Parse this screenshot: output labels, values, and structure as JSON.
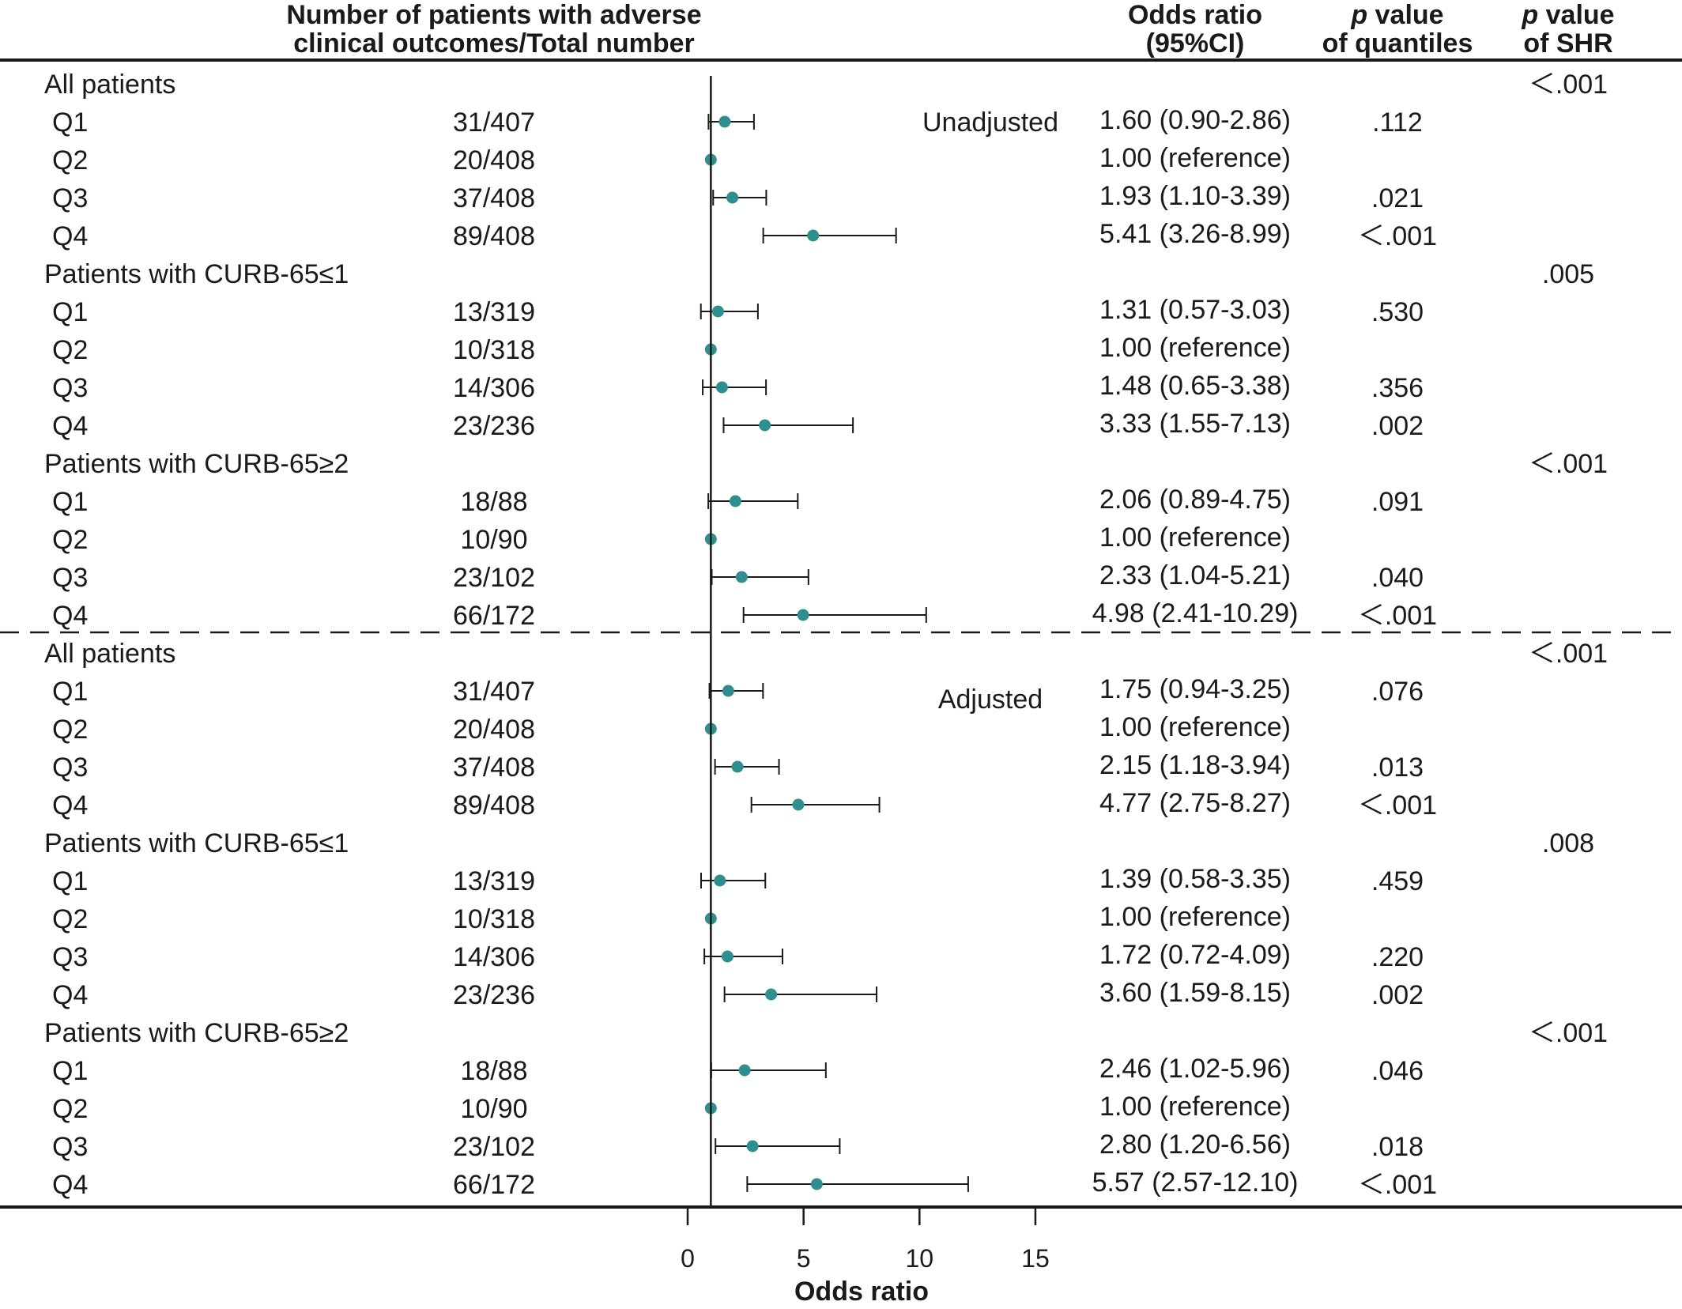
{
  "colors": {
    "marker": "#2f8f8f",
    "line": "#1a1a1a"
  },
  "headers": {
    "count_line1": "Number of patients with adverse",
    "count_line2": "clinical outcomes/Total number",
    "or_line1": "Odds ratio",
    "or_line2": "(95%CI)",
    "pq_line1_italic": "p",
    "pq_line1_rest": " value",
    "pq_line2": "of quantiles",
    "pshr_line1_italic": "p",
    "pshr_line1_rest": " value",
    "pshr_line2": "of SHR"
  },
  "chart_data": {
    "type": "forest",
    "xlabel": "Odds ratio",
    "xticks": [
      0,
      5,
      10,
      15
    ],
    "xlim": [
      0,
      15
    ],
    "reference_line": 1,
    "panels": [
      {
        "label": "Unadjusted",
        "groups": [
          {
            "name": "All patients",
            "p_shr": "＜.001",
            "rows": [
              {
                "q": "Q1",
                "count": "31/407",
                "or": 1.6,
                "lo": 0.9,
                "hi": 2.86,
                "ci_text": "1.60 (0.90-2.86)",
                "p": ".112"
              },
              {
                "q": "Q2",
                "count": "20/408",
                "or": 1.0,
                "lo": 1.0,
                "hi": 1.0,
                "ci_text": "1.00 (reference)",
                "p": ""
              },
              {
                "q": "Q3",
                "count": "37/408",
                "or": 1.93,
                "lo": 1.1,
                "hi": 3.39,
                "ci_text": "1.93 (1.10-3.39)",
                "p": ".021"
              },
              {
                "q": "Q4",
                "count": "89/408",
                "or": 5.41,
                "lo": 3.26,
                "hi": 8.99,
                "ci_text": "5.41 (3.26-8.99)",
                "p": "＜.001"
              }
            ]
          },
          {
            "name": "Patients with CURB-65≤1",
            "p_shr": ".005",
            "rows": [
              {
                "q": "Q1",
                "count": "13/319",
                "or": 1.31,
                "lo": 0.57,
                "hi": 3.03,
                "ci_text": "1.31 (0.57-3.03)",
                "p": ".530"
              },
              {
                "q": "Q2",
                "count": "10/318",
                "or": 1.0,
                "lo": 1.0,
                "hi": 1.0,
                "ci_text": "1.00 (reference)",
                "p": ""
              },
              {
                "q": "Q3",
                "count": "14/306",
                "or": 1.48,
                "lo": 0.65,
                "hi": 3.38,
                "ci_text": "1.48 (0.65-3.38)",
                "p": ".356"
              },
              {
                "q": "Q4",
                "count": "23/236",
                "or": 3.33,
                "lo": 1.55,
                "hi": 7.13,
                "ci_text": "3.33 (1.55-7.13)",
                "p": ".002"
              }
            ]
          },
          {
            "name": "Patients with CURB-65≥2",
            "p_shr": "＜.001",
            "rows": [
              {
                "q": "Q1",
                "count": "18/88",
                "or": 2.06,
                "lo": 0.89,
                "hi": 4.75,
                "ci_text": "2.06 (0.89-4.75)",
                "p": ".091"
              },
              {
                "q": "Q2",
                "count": "10/90",
                "or": 1.0,
                "lo": 1.0,
                "hi": 1.0,
                "ci_text": "1.00 (reference)",
                "p": ""
              },
              {
                "q": "Q3",
                "count": "23/102",
                "or": 2.33,
                "lo": 1.04,
                "hi": 5.21,
                "ci_text": "2.33 (1.04-5.21)",
                "p": ".040"
              },
              {
                "q": "Q4",
                "count": "66/172",
                "or": 4.98,
                "lo": 2.41,
                "hi": 10.29,
                "ci_text": "4.98 (2.41-10.29)",
                "p": "＜.001"
              }
            ]
          }
        ]
      },
      {
        "label": "Adjusted",
        "groups": [
          {
            "name": "All patients",
            "p_shr": "＜.001",
            "rows": [
              {
                "q": "Q1",
                "count": "31/407",
                "or": 1.75,
                "lo": 0.94,
                "hi": 3.25,
                "ci_text": "1.75 (0.94-3.25)",
                "p": ".076"
              },
              {
                "q": "Q2",
                "count": "20/408",
                "or": 1.0,
                "lo": 1.0,
                "hi": 1.0,
                "ci_text": "1.00 (reference)",
                "p": ""
              },
              {
                "q": "Q3",
                "count": "37/408",
                "or": 2.15,
                "lo": 1.18,
                "hi": 3.94,
                "ci_text": "2.15 (1.18-3.94)",
                "p": ".013"
              },
              {
                "q": "Q4",
                "count": "89/408",
                "or": 4.77,
                "lo": 2.75,
                "hi": 8.27,
                "ci_text": "4.77 (2.75-8.27)",
                "p": "＜.001"
              }
            ]
          },
          {
            "name": "Patients with CURB-65≤1",
            "p_shr": ".008",
            "rows": [
              {
                "q": "Q1",
                "count": "13/319",
                "or": 1.39,
                "lo": 0.58,
                "hi": 3.35,
                "ci_text": "1.39 (0.58-3.35)",
                "p": ".459"
              },
              {
                "q": "Q2",
                "count": "10/318",
                "or": 1.0,
                "lo": 1.0,
                "hi": 1.0,
                "ci_text": "1.00 (reference)",
                "p": ""
              },
              {
                "q": "Q3",
                "count": "14/306",
                "or": 1.72,
                "lo": 0.72,
                "hi": 4.09,
                "ci_text": "1.72 (0.72-4.09)",
                "p": ".220"
              },
              {
                "q": "Q4",
                "count": "23/236",
                "or": 3.6,
                "lo": 1.59,
                "hi": 8.15,
                "ci_text": "3.60 (1.59-8.15)",
                "p": ".002"
              }
            ]
          },
          {
            "name": "Patients with CURB-65≥2",
            "p_shr": "＜.001",
            "rows": [
              {
                "q": "Q1",
                "count": "18/88",
                "or": 2.46,
                "lo": 1.02,
                "hi": 5.96,
                "ci_text": "2.46 (1.02-5.96)",
                "p": ".046"
              },
              {
                "q": "Q2",
                "count": "10/90",
                "or": 1.0,
                "lo": 1.0,
                "hi": 1.0,
                "ci_text": "1.00 (reference)",
                "p": ""
              },
              {
                "q": "Q3",
                "count": "23/102",
                "or": 2.8,
                "lo": 1.2,
                "hi": 6.56,
                "ci_text": "2.80 (1.20-6.56)",
                "p": ".018"
              },
              {
                "q": "Q4",
                "count": "66/172",
                "or": 5.57,
                "lo": 2.57,
                "hi": 12.1,
                "ci_text": "5.57 (2.57-12.10)",
                "p": "＜.001"
              }
            ]
          }
        ]
      }
    ]
  }
}
